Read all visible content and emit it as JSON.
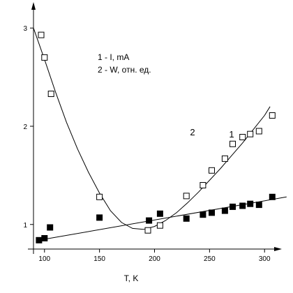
{
  "chart_data": {
    "type": "scatter",
    "xlabel": "T, K",
    "ylabel": "",
    "xlim": [
      90,
      310
    ],
    "ylim": [
      0.7,
      3.25
    ],
    "x_ticks": [
      100,
      150,
      200,
      250,
      300
    ],
    "y_ticks": [
      1,
      2,
      3
    ],
    "legend_lines": [
      "1 - I, mA",
      "2 - W, отн. ед."
    ],
    "series": [
      {
        "name": "1",
        "marker": "filled-square",
        "color": "#000000",
        "x": [
          95,
          100,
          105,
          150,
          195,
          205,
          229,
          244,
          252,
          264,
          271,
          280,
          287,
          295,
          307
        ],
        "y": [
          0.84,
          0.86,
          0.97,
          1.07,
          1.04,
          1.11,
          1.06,
          1.1,
          1.12,
          1.14,
          1.18,
          1.19,
          1.21,
          1.2,
          1.28
        ],
        "fit": {
          "x": [
            95,
            320
          ],
          "y": [
            0.84,
            1.28
          ]
        }
      },
      {
        "name": "2",
        "marker": "open-square",
        "color": "#000000",
        "x": [
          97,
          100,
          106,
          150,
          194,
          205,
          229,
          244,
          252,
          264,
          271,
          280,
          287,
          295,
          307
        ],
        "y": [
          2.93,
          2.7,
          2.33,
          1.28,
          0.94,
          0.99,
          1.29,
          1.4,
          1.55,
          1.67,
          1.82,
          1.89,
          1.92,
          1.95,
          2.11
        ],
        "fit": {
          "x": [
            90,
            100,
            110,
            120,
            130,
            140,
            150,
            160,
            170,
            180,
            190,
            200,
            210,
            220,
            230,
            240,
            250,
            260,
            270,
            280,
            290,
            300,
            305
          ],
          "y": [
            3.0,
            2.68,
            2.35,
            2.04,
            1.77,
            1.53,
            1.32,
            1.14,
            1.02,
            0.96,
            0.95,
            0.98,
            1.04,
            1.12,
            1.22,
            1.33,
            1.45,
            1.57,
            1.7,
            1.83,
            1.97,
            2.11,
            2.2
          ]
        }
      }
    ]
  }
}
